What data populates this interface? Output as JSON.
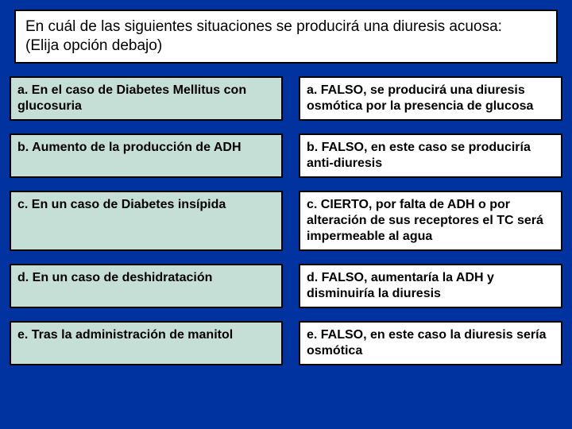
{
  "question": {
    "line1": "En cuál de las siguientes situaciones se producirá una diuresis acuosa:",
    "line2": "(Elija opción debajo)"
  },
  "rows": [
    {
      "option": "a. En el caso de Diabetes Mellitus con glucosuria",
      "answer": "a. FALSO, se producirá una diuresis osmótica por la presencia de glucosa"
    },
    {
      "option": "b. Aumento de la producción de ADH",
      "answer": "b. FALSO, en este caso se produciría anti-diuresis"
    },
    {
      "option": "c. En un caso de Diabetes insípida",
      "answer": "c. CIERTO, por falta de ADH o por alteración de sus receptores el TC será impermeable al agua"
    },
    {
      "option": "d. En un caso de deshidratación",
      "answer": "d. FALSO, aumentaría la ADH y disminuiría la diuresis"
    },
    {
      "option": "e. Tras la administración de manitol",
      "answer": "e. FALSO, en este caso la diuresis sería osmótica"
    }
  ],
  "colors": {
    "page_bg": "#0033a0",
    "question_bg": "#ffffff",
    "option_bg": "#c5ded6",
    "answer_bg": "#ffffff",
    "border": "#000000",
    "text": "#000000"
  }
}
